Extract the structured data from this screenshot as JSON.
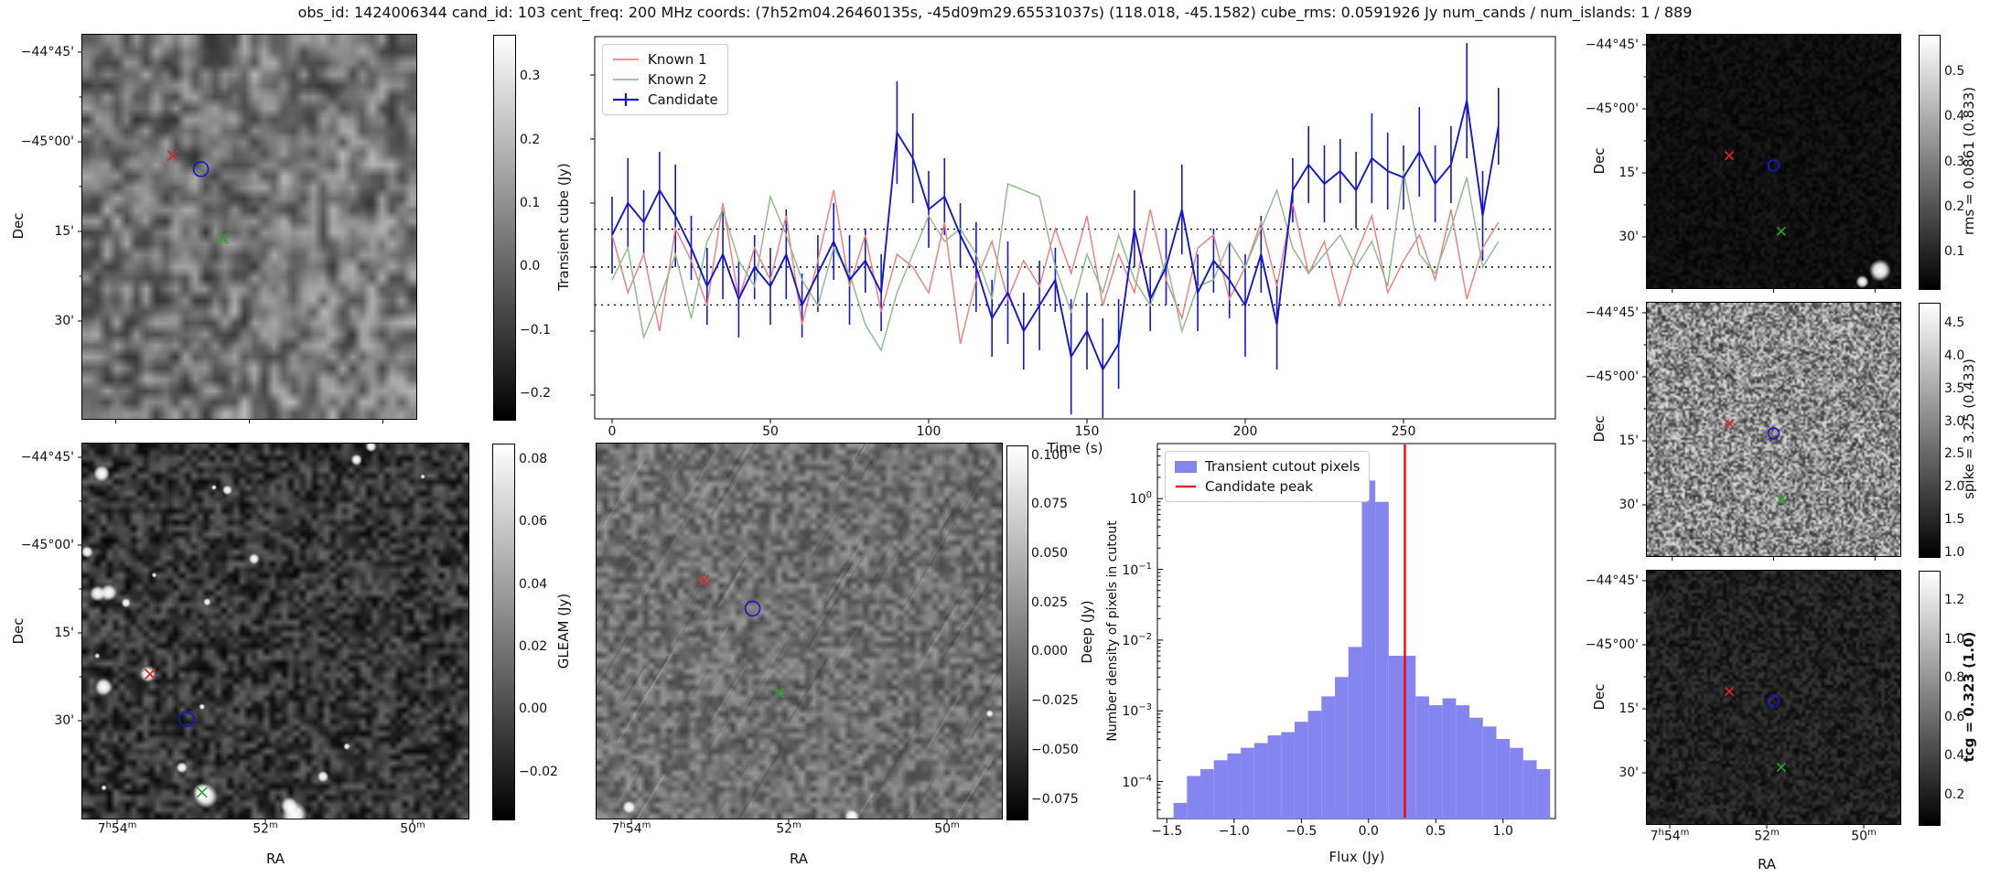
{
  "title": "obs_id: 1424006344 cand_id: 103 cent_freq: 200 MHz coords: (7h52m04.26460135s, -45d09m29.65531037s) (118.018, -45.1582) cube_rms: 0.0591926 Jy num_cands / num_islands: 1 / 889",
  "axes": {
    "ra_label": "RA",
    "dec_label": "Dec",
    "ra_ticks": [
      "7h54m",
      "52m",
      "50m"
    ],
    "dec_ticks": [
      "−44°45'",
      "−45°00'",
      "15'",
      "30'"
    ]
  },
  "colorbars": {
    "transient": {
      "label": "Transient cube (Jy)",
      "ticks": [
        0.3,
        0.2,
        0.1,
        0.0,
        -0.1,
        -0.2
      ]
    },
    "gleam": {
      "label": "GLEAM (Jy)",
      "ticks": [
        0.08,
        0.06,
        0.04,
        0.02,
        0.0,
        -0.02
      ]
    },
    "deep": {
      "label": "Deep (Jy)",
      "ticks": [
        0.1,
        0.075,
        0.05,
        0.025,
        0.0,
        -0.025,
        -0.05,
        -0.075
      ]
    },
    "rms": {
      "label": "rms = 0.0861 (0.833)",
      "ticks": [
        0.5,
        0.4,
        0.3,
        0.2,
        0.1
      ]
    },
    "spike": {
      "label": "spike = 3.25 (0.433)",
      "ticks": [
        4.5,
        4.0,
        3.5,
        3.0,
        2.5,
        2.0,
        1.5,
        1.0
      ]
    },
    "tcg": {
      "label": "tcg = 0.323 (1.0)",
      "ticks": [
        1.2,
        1.0,
        0.8,
        0.6,
        0.4,
        0.2
      ]
    }
  },
  "markers": {
    "known1_color": "#d62728",
    "known2_color": "#2ca02c",
    "candidate_color": "#1515cc"
  },
  "chart_data": [
    {
      "type": "line",
      "title": "",
      "xlabel": "Time (s)",
      "ylabel": "",
      "xlim": [
        -6,
        298
      ],
      "ylim_jy": [
        -0.24,
        0.36
      ],
      "x_ticks": [
        0,
        50,
        100,
        150,
        200,
        250
      ],
      "threshold_lines_jy": [
        0.0592,
        0.0,
        -0.0592
      ],
      "legend_position": "upper left",
      "x": [
        0,
        5,
        10,
        15,
        20,
        25,
        30,
        35,
        40,
        45,
        50,
        55,
        60,
        65,
        70,
        75,
        80,
        85,
        90,
        95,
        100,
        105,
        110,
        115,
        120,
        125,
        130,
        135,
        140,
        145,
        150,
        155,
        160,
        165,
        170,
        175,
        180,
        185,
        190,
        195,
        200,
        205,
        210,
        215,
        220,
        225,
        230,
        235,
        240,
        245,
        250,
        255,
        260,
        265,
        270,
        275,
        280
      ],
      "series": [
        {
          "name": "Known 1",
          "color": "#f08080",
          "values": [
            0.05,
            -0.04,
            0.02,
            -0.1,
            0.06,
            0.01,
            -0.06,
            0.1,
            -0.05,
            0.03,
            -0.02,
            0.08,
            -0.09,
            0.01,
            0.12,
            -0.03,
            0.05,
            -0.07,
            0.02,
            0.0,
            -0.04,
            0.07,
            -0.12,
            -0.02,
            0.04,
            -0.05,
            0.01,
            -0.03,
            0.06,
            -0.01,
            0.08,
            -0.06,
            0.02,
            -0.04,
            0.09,
            -0.02,
            -0.08,
            0.03,
            0.05,
            -0.05,
            0.0,
            0.07,
            -0.03,
            0.1,
            -0.01,
            0.04,
            -0.06,
            0.02,
            0.08,
            -0.04,
            0.01,
            0.05,
            -0.02,
            0.09,
            -0.05,
            0.03,
            0.07
          ]
        },
        {
          "name": "Known 2",
          "color": "#8fbc8f",
          "values": [
            -0.02,
            0.03,
            -0.11,
            -0.05,
            0.02,
            -0.08,
            0.04,
            0.09,
            0.01,
            -0.03,
            0.11,
            0.05,
            -0.02,
            -0.06,
            0.03,
            -0.01,
            -0.09,
            -0.13,
            -0.04,
            0.02,
            0.08,
            0.04,
            0.06,
            0.02,
            -0.05,
            0.13,
            0.12,
            0.11,
            0.0,
            -0.07,
            0.02,
            -0.04,
            0.05,
            -0.02,
            -0.06,
            0.01,
            -0.1,
            -0.03,
            -0.02,
            0.04,
            0.0,
            0.06,
            0.12,
            0.03,
            -0.01,
            0.02,
            0.05,
            0.0,
            0.04,
            -0.03,
            0.15,
            0.02,
            -0.01,
            0.06,
            0.14,
            0.0,
            0.04
          ]
        },
        {
          "name": "Candidate",
          "color": "#1515cc",
          "values": [
            0.05,
            0.1,
            0.07,
            0.12,
            0.08,
            0.03,
            -0.03,
            0.02,
            -0.05,
            0.0,
            -0.03,
            0.02,
            -0.06,
            -0.01,
            0.04,
            -0.02,
            0.01,
            -0.04,
            0.21,
            0.17,
            0.09,
            0.11,
            0.05,
            0.0,
            -0.08,
            -0.04,
            -0.1,
            -0.06,
            -0.02,
            -0.14,
            -0.1,
            -0.16,
            -0.12,
            0.06,
            -0.05,
            0.0,
            0.09,
            -0.04,
            0.01,
            -0.02,
            -0.06,
            0.02,
            -0.09,
            0.12,
            0.16,
            0.13,
            0.15,
            0.12,
            0.17,
            0.15,
            0.14,
            0.18,
            0.13,
            0.16,
            0.26,
            0.08,
            0.22
          ],
          "errors": [
            0.06,
            0.07,
            0.05,
            0.06,
            0.08,
            0.05,
            0.06,
            0.07,
            0.06,
            0.05,
            0.06,
            0.07,
            0.05,
            0.06,
            0.06,
            0.07,
            0.05,
            0.06,
            0.08,
            0.07,
            0.06,
            0.06,
            0.05,
            0.07,
            0.06,
            0.08,
            0.06,
            0.07,
            0.05,
            0.09,
            0.06,
            0.08,
            0.07,
            0.06,
            0.05,
            0.06,
            0.07,
            0.06,
            0.05,
            0.06,
            0.08,
            0.06,
            0.07,
            0.05,
            0.06,
            0.06,
            0.05,
            0.06,
            0.07,
            0.06,
            0.05,
            0.07,
            0.06,
            0.06,
            0.09,
            0.07,
            0.06
          ]
        }
      ]
    },
    {
      "type": "bar",
      "title": "",
      "xlabel": "Flux (Jy)",
      "ylabel": "Number density of pixels in cutout",
      "yscale": "log",
      "ylim": [
        3e-05,
        6
      ],
      "x_ticks": [
        -1.5,
        -1.0,
        -0.5,
        0.0,
        0.5,
        1.0
      ],
      "y_tick_exponents": [
        0,
        -1,
        -2,
        -3,
        -4
      ],
      "legend": [
        "Transient cutout pixels",
        "Candidate peak"
      ],
      "bar_color": "#8585f0",
      "peak_line_color": "#ff0000",
      "candidate_peak_flux": 0.27,
      "bin_width": 0.1,
      "bin_centers": [
        -1.4,
        -1.3,
        -1.2,
        -1.1,
        -1.0,
        -0.9,
        -0.8,
        -0.7,
        -0.6,
        -0.5,
        -0.4,
        -0.3,
        -0.2,
        -0.1,
        0.0,
        0.1,
        0.2,
        0.3,
        0.4,
        0.5,
        0.6,
        0.7,
        0.8,
        0.9,
        1.0,
        1.1,
        1.2,
        1.3
      ],
      "densities": [
        5e-05,
        0.00012,
        0.00015,
        0.0002,
        0.00025,
        0.0003,
        0.00035,
        0.00045,
        0.0005,
        0.0007,
        0.001,
        0.0016,
        0.003,
        0.008,
        1.8,
        0.9,
        0.006,
        0.006,
        0.0016,
        0.0012,
        0.0015,
        0.0012,
        0.0008,
        0.0006,
        0.0004,
        0.0003,
        0.0002,
        0.00015
      ]
    }
  ]
}
